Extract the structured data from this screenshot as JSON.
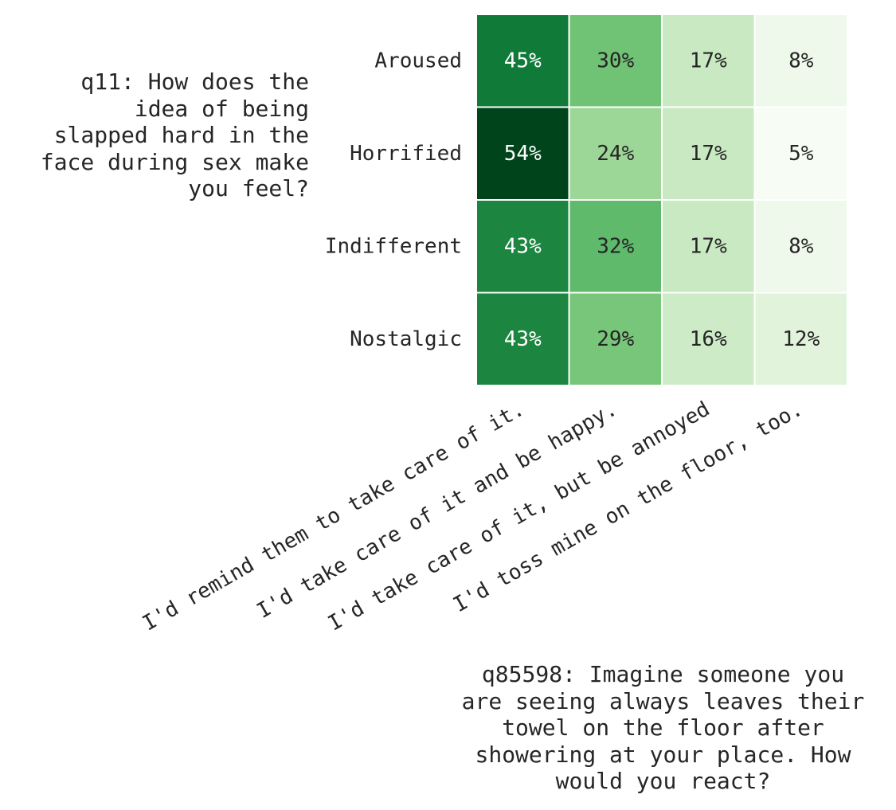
{
  "chart_data": {
    "type": "heatmap",
    "title": "",
    "ylabel": "q11: How does the\nidea of being\nslapped hard in the\nface during sex make\nyou feel?",
    "xlabel": "q85598: Imagine someone you\nare seeing always leaves their\ntowel on the floor after\nshowering at your place.  How\nwould you react?",
    "rows": [
      "Aroused",
      "Horrified",
      "Indifferent",
      "Nostalgic"
    ],
    "columns": [
      "I'd remind them to take care of it.",
      "I'd take care of it and be happy.",
      "I'd take care of it, but be annoyed",
      "I'd toss mine on the floor, too."
    ],
    "values": [
      [
        45,
        30,
        17,
        8
      ],
      [
        54,
        24,
        17,
        5
      ],
      [
        43,
        32,
        17,
        8
      ],
      [
        43,
        29,
        16,
        12
      ]
    ],
    "cell_labels": [
      [
        "45%",
        "30%",
        "17%",
        "8%"
      ],
      [
        "54%",
        "24%",
        "17%",
        "5%"
      ],
      [
        "43%",
        "32%",
        "17%",
        "8%"
      ],
      [
        "43%",
        "29%",
        "16%",
        "12%"
      ]
    ],
    "colormap": "Greens",
    "color_range": [
      5,
      54
    ],
    "grid": false,
    "legend": "none"
  }
}
